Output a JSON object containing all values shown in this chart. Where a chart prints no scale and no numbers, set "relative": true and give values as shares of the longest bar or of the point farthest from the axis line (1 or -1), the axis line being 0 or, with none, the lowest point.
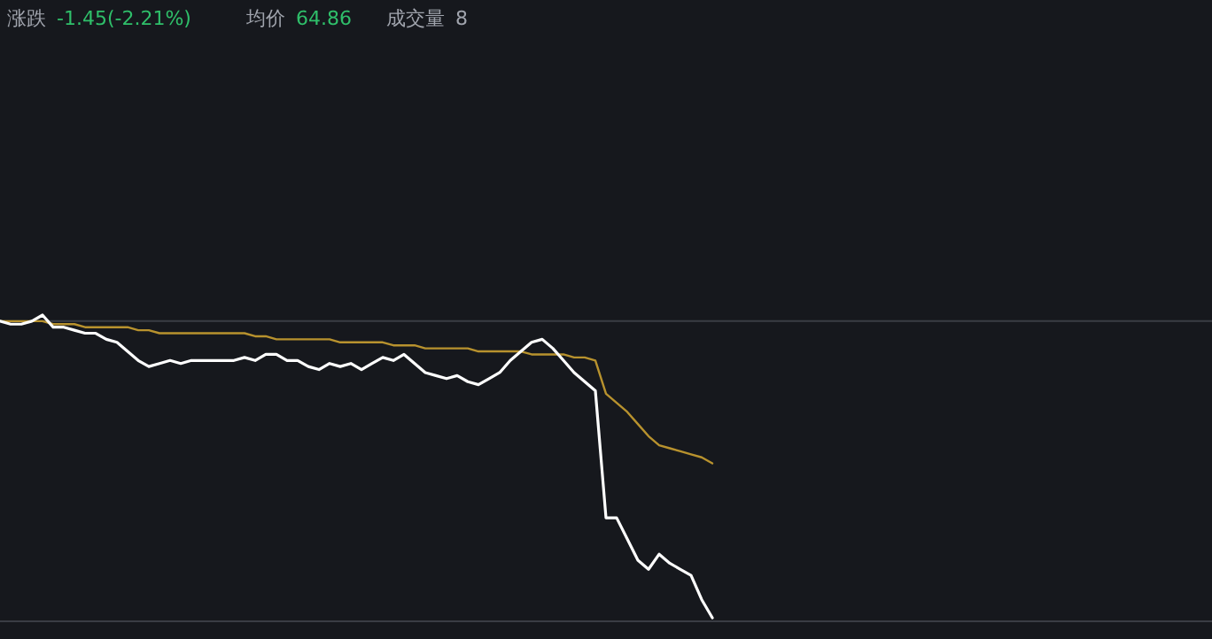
{
  "chart_data": {
    "type": "line",
    "relative": true,
    "annotations": [
      "涨跌 -1.45(-2.21%)",
      "均价 64.86",
      "成交量 8"
    ],
    "categories": [
      null,
      null,
      null,
      null,
      null,
      null,
      null,
      null,
      null,
      null,
      null,
      null,
      null,
      null,
      null,
      null,
      null,
      null,
      null,
      null,
      null,
      null,
      null,
      null,
      null,
      null,
      null,
      null,
      null,
      null,
      null,
      null,
      null,
      null,
      null,
      null,
      null,
      null,
      null,
      null,
      null,
      null,
      null,
      null,
      null,
      null,
      null,
      null,
      null,
      null,
      null,
      null,
      null,
      null,
      null,
      null,
      null,
      null,
      null,
      null,
      null,
      null,
      null,
      null,
      null,
      null,
      null,
      null,
      null,
      null,
      null,
      null,
      null,
      null,
      null,
      null,
      null,
      null,
      null,
      null,
      null,
      null,
      null,
      null,
      null,
      null,
      null,
      null,
      null,
      null,
      null,
      null,
      null,
      null,
      null,
      null,
      null,
      null,
      null,
      null,
      null,
      null,
      null,
      null,
      null,
      null,
      null,
      null,
      null,
      null,
      null,
      null,
      null,
      null,
      null
    ],
    "series": [
      {
        "color": "#ffffff",
        "values": [
          0.98,
          0.97,
          0.97,
          0.98,
          1,
          0.96,
          0.96,
          0.95,
          0.94,
          0.94,
          0.92,
          0.91,
          0.88,
          0.85,
          0.83,
          0.84,
          0.85,
          0.84,
          0.85,
          0.85,
          0.85,
          0.85,
          0.85,
          0.86,
          0.85,
          0.87,
          0.87,
          0.85,
          0.85,
          0.83,
          0.82,
          0.84,
          0.83,
          0.84,
          0.82,
          0.84,
          0.86,
          0.85,
          0.87,
          0.84,
          0.81,
          0.8,
          0.79,
          0.8,
          0.78,
          0.77,
          0.79,
          0.81,
          0.85,
          0.88,
          0.91,
          0.92,
          0.89,
          0.85,
          0.81,
          0.78,
          0.75,
          0.33,
          0.33,
          0.26,
          0.19,
          0.16,
          0.21,
          0.18,
          0.16,
          0.14,
          0.06,
          0,
          null,
          null,
          null,
          null,
          null,
          null,
          null,
          null,
          null,
          null,
          null,
          null,
          null,
          null,
          null,
          null,
          null,
          null,
          null,
          null,
          null,
          null,
          null,
          null,
          null,
          null,
          null,
          null,
          null,
          null,
          null,
          null,
          null,
          null,
          null,
          null,
          null,
          null,
          null,
          null,
          null,
          null,
          null,
          null,
          null,
          null,
          null
        ]
      },
      {
        "color": "#b8922e",
        "values": [
          0.98,
          0.98,
          0.98,
          0.98,
          0.98,
          0.97,
          0.97,
          0.97,
          0.96,
          0.96,
          0.96,
          0.96,
          0.96,
          0.95,
          0.95,
          0.94,
          0.94,
          0.94,
          0.94,
          0.94,
          0.94,
          0.94,
          0.94,
          0.94,
          0.93,
          0.93,
          0.92,
          0.92,
          0.92,
          0.92,
          0.92,
          0.92,
          0.91,
          0.91,
          0.91,
          0.91,
          0.91,
          0.9,
          0.9,
          0.9,
          0.89,
          0.89,
          0.89,
          0.89,
          0.89,
          0.88,
          0.88,
          0.88,
          0.88,
          0.88,
          0.87,
          0.87,
          0.87,
          0.87,
          0.86,
          0.86,
          0.85,
          0.74,
          0.71,
          0.68,
          0.64,
          0.6,
          0.57,
          0.56,
          0.55,
          0.54,
          0.53,
          0.51,
          null,
          null,
          null,
          null,
          null,
          null,
          null,
          null,
          null,
          null,
          null,
          null,
          null,
          null,
          null,
          null,
          null,
          null,
          null,
          null,
          null,
          null,
          null,
          null,
          null,
          null,
          null,
          null,
          null,
          null,
          null,
          null,
          null,
          null,
          null,
          null,
          null,
          null,
          null,
          null,
          null,
          null,
          null,
          null,
          null,
          null,
          null
        ]
      }
    ],
    "ref_lines": [
      {
        "axis": "y",
        "value": 0.98,
        "color": "#3a3d44"
      }
    ]
  }
}
